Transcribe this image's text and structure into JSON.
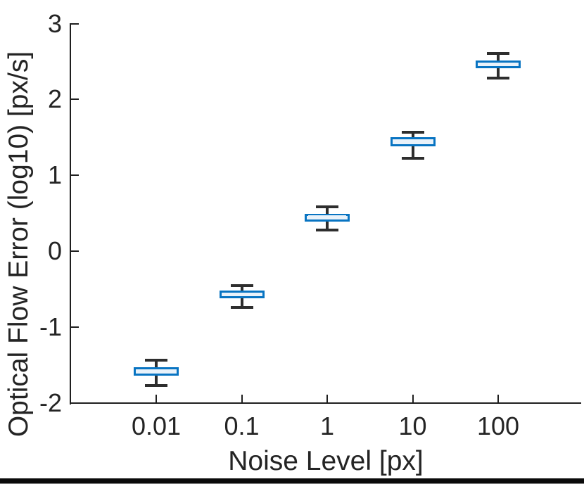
{
  "chart_data": {
    "type": "boxplot",
    "title": "",
    "xlabel": "Noise Level [px]",
    "ylabel": "Optical Flow Error (log10) [px/s]",
    "x_scale": "log-categorical",
    "categories": [
      "0.01",
      "0.1",
      "1",
      "10",
      "100"
    ],
    "ytick_labels": [
      "3",
      "2",
      "1",
      "0",
      "-1",
      "-2"
    ],
    "yticks": [
      3,
      2,
      1,
      0,
      -1,
      -2
    ],
    "ylim": [
      -2,
      3
    ],
    "grid": false,
    "legend": "none",
    "boxes": [
      {
        "category": "0.01",
        "whisker_low": -1.77,
        "q1": -1.64,
        "median": -1.58,
        "q3": -1.53,
        "whisker_high": -1.44
      },
      {
        "category": "0.1",
        "whisker_low": -0.74,
        "q1": -0.62,
        "median": -0.57,
        "q3": -0.52,
        "whisker_high": -0.45
      },
      {
        "category": "1",
        "whisker_low": 0.28,
        "q1": 0.39,
        "median": 0.45,
        "q3": 0.49,
        "whisker_high": 0.58
      },
      {
        "category": "10",
        "whisker_low": 1.22,
        "q1": 1.38,
        "median": 1.44,
        "q3": 1.5,
        "whisker_high": 1.57
      },
      {
        "category": "100",
        "whisker_low": 2.28,
        "q1": 2.41,
        "median": 2.46,
        "q3": 2.51,
        "whisker_high": 2.61
      }
    ],
    "colors": {
      "box_edge": "#0874c2",
      "box_fill": "#bfdcee",
      "median_line": "#e9f2fa",
      "whisker": "#2e2e2e",
      "axis": "#1f1f1f",
      "text": "#242424",
      "background": "#ffffff",
      "bottom_bar": "#0a0a0a"
    }
  }
}
